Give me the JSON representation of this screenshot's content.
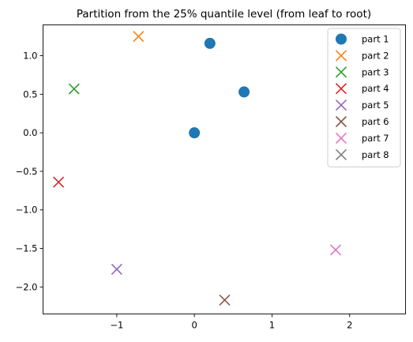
{
  "chart_data": {
    "type": "scatter",
    "title": "Partition from the 25% quantile level (from leaf to root)",
    "xlabel": "",
    "ylabel": "",
    "xlim": [
      -1.95,
      2.72
    ],
    "ylim": [
      -2.35,
      1.4
    ],
    "xticks": [
      -1,
      0,
      1,
      2
    ],
    "yticks": [
      1.0,
      0.5,
      0.0,
      -0.5,
      -1.0,
      -1.5,
      -2.0
    ],
    "xtick_labels": [
      "−1",
      "0",
      "1",
      "2"
    ],
    "ytick_labels": [
      "1.0",
      "0.5",
      "0.0",
      "−0.5",
      "−1.0",
      "−1.5",
      "−2.0"
    ],
    "grid": false,
    "legend_position": "top-right",
    "series": [
      {
        "name": "part 1",
        "marker": "circle",
        "color": "#1f77b4",
        "points": [
          [
            0.0,
            0.0
          ],
          [
            0.2,
            1.16
          ],
          [
            0.64,
            0.53
          ]
        ]
      },
      {
        "name": "part 2",
        "marker": "x",
        "color": "#ff7f0e",
        "points": [
          [
            -0.72,
            1.25
          ]
        ]
      },
      {
        "name": "part 3",
        "marker": "x",
        "color": "#2ca02c",
        "points": [
          [
            -1.55,
            0.57
          ]
        ]
      },
      {
        "name": "part 4",
        "marker": "x",
        "color": "#d62728",
        "points": [
          [
            -1.75,
            -0.64
          ]
        ]
      },
      {
        "name": "part 5",
        "marker": "x",
        "color": "#9467bd",
        "points": [
          [
            -1.0,
            -1.77
          ]
        ]
      },
      {
        "name": "part 6",
        "marker": "x",
        "color": "#8c564b",
        "points": [
          [
            0.39,
            -2.17
          ]
        ]
      },
      {
        "name": "part 7",
        "marker": "x",
        "color": "#e377c2",
        "points": [
          [
            1.82,
            -1.52
          ]
        ]
      },
      {
        "name": "part 8",
        "marker": "x",
        "color": "#7f7f7f",
        "points": []
      }
    ]
  }
}
